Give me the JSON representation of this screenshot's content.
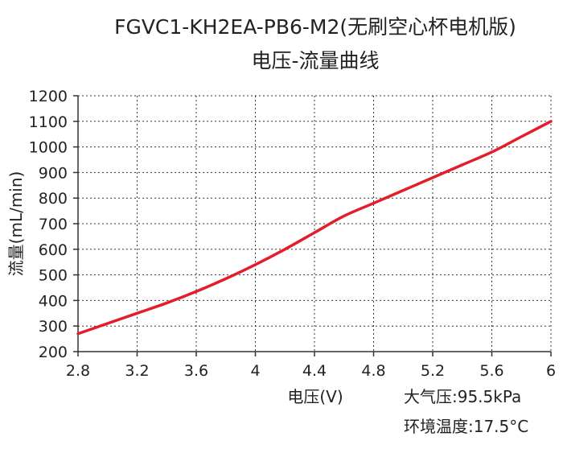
{
  "chart_data": {
    "type": "line",
    "title": "FGVC1-KH2EA-PB6-M2(无刷空心杯电机版)",
    "subtitle": "电压-流量曲线",
    "xlabel": "电压(V)",
    "ylabel": "流量(mL/min)",
    "xlim": [
      2.8,
      6
    ],
    "ylim": [
      200,
      1200
    ],
    "xticks": [
      "2.8",
      "3.2",
      "3.6",
      "4",
      "4.4",
      "4.8",
      "5.2",
      "5.6",
      "6"
    ],
    "yticks": [
      "200",
      "300",
      "400",
      "500",
      "600",
      "700",
      "800",
      "900",
      "1000",
      "1100",
      "1200"
    ],
    "grid": true,
    "annotations": [
      "大气压:95.5kPa",
      "环境温度:17.5°C"
    ],
    "series": [
      {
        "color": "#e31e2a",
        "x": [
          2.8,
          3.0,
          3.2,
          3.4,
          3.6,
          3.8,
          4.0,
          4.2,
          4.4,
          4.6,
          4.8,
          5.0,
          5.2,
          5.4,
          5.6,
          5.8,
          6.0
        ],
        "y": [
          270,
          310,
          350,
          390,
          435,
          485,
          540,
          600,
          665,
          730,
          780,
          830,
          880,
          930,
          980,
          1040,
          1100
        ]
      }
    ]
  }
}
